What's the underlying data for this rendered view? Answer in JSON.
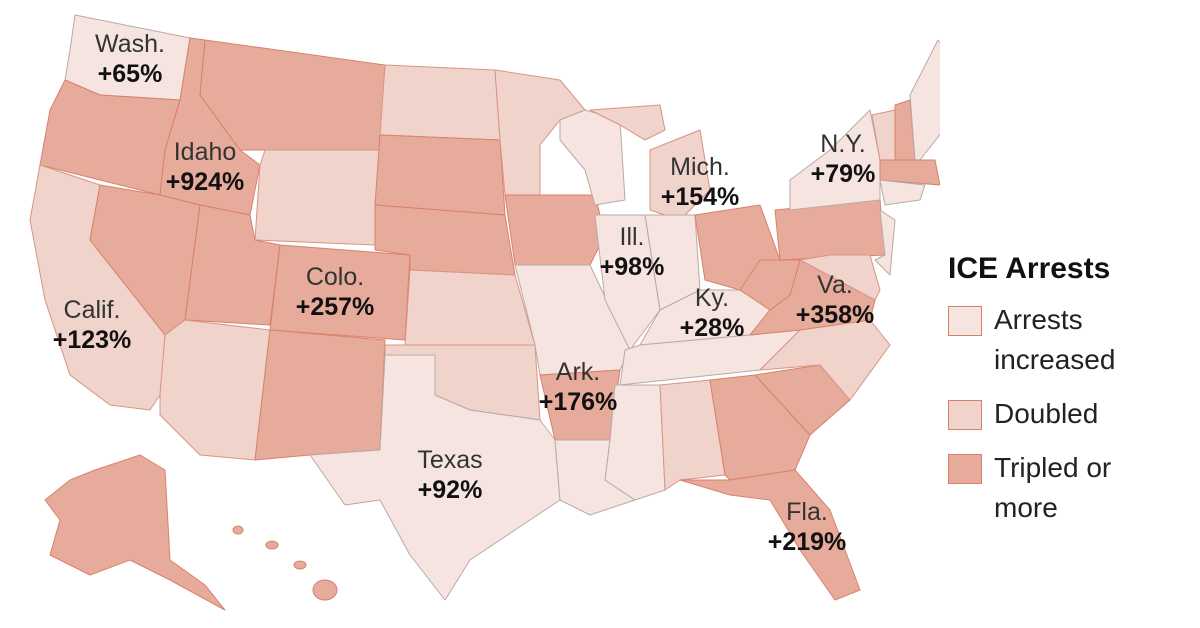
{
  "map": {
    "legend": {
      "title": "ICE Arrests",
      "items": [
        {
          "label": "Arrests increased",
          "color": "#f5e4df"
        },
        {
          "label": "Doubled",
          "color": "#f0d3cb"
        },
        {
          "label": "Tripled or more",
          "color": "#e7ab9c"
        }
      ]
    },
    "labels": [
      {
        "name": "Wash.",
        "change": "+65%"
      },
      {
        "name": "Idaho",
        "change": "+924%"
      },
      {
        "name": "Calif.",
        "change": "+123%"
      },
      {
        "name": "Colo.",
        "change": "+257%"
      },
      {
        "name": "Texas",
        "change": "+92%"
      },
      {
        "name": "Ark.",
        "change": "+176%"
      },
      {
        "name": "Ill.",
        "change": "+98%"
      },
      {
        "name": "Mich.",
        "change": "+154%"
      },
      {
        "name": "Ky.",
        "change": "+28%"
      },
      {
        "name": "N.Y.",
        "change": "+79%"
      },
      {
        "name": "Va.",
        "change": "+358%"
      },
      {
        "name": "Fla.",
        "change": "+219%"
      }
    ]
  }
}
